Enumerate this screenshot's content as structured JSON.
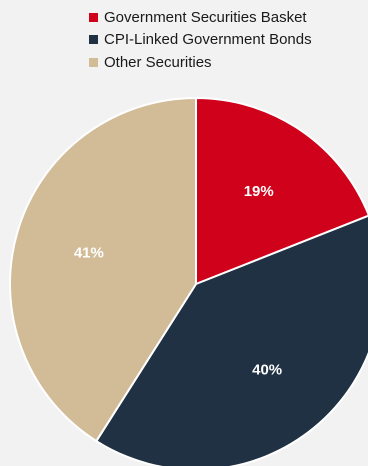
{
  "chart_data": {
    "type": "pie",
    "categories": [
      "Government Securities Basket",
      "CPI-Linked Government Bonds",
      "Other Securities"
    ],
    "values": [
      19,
      40,
      41
    ],
    "data_labels": [
      "19%",
      "40%",
      "41%"
    ],
    "colors": [
      "#d0021b",
      "#1f3142",
      "#d2bc98"
    ],
    "label_color": "#ffffff",
    "start_angle_deg": 0,
    "direction": "clockwise",
    "legend_position": "top-right"
  }
}
